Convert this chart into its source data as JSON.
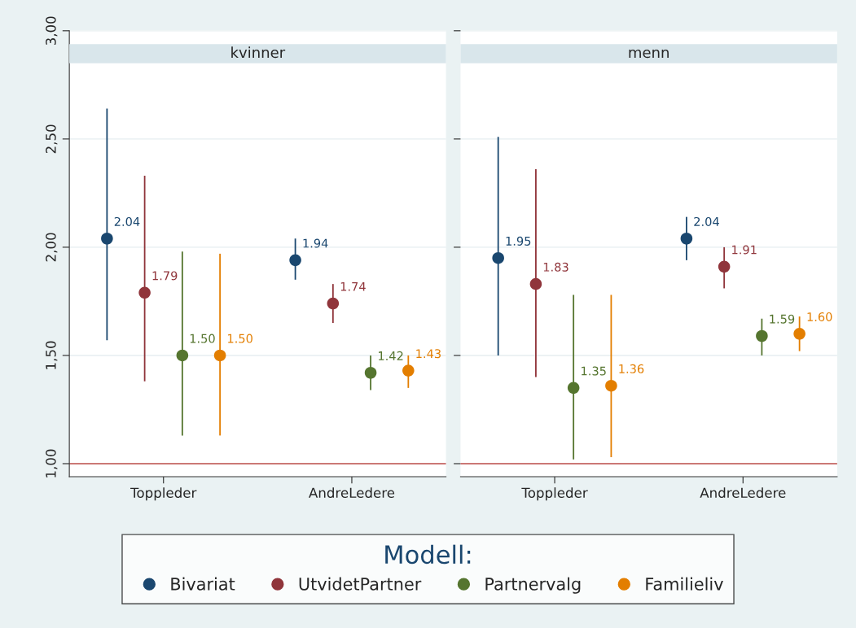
{
  "chart_data": [
    {
      "type": "scatter",
      "title": "kvinner",
      "categories": [
        "Toppleder",
        "AndreLedere"
      ],
      "ylim": [
        0.94,
        3.0
      ],
      "yticks": [
        {
          "value": 1.0,
          "label": "1,00"
        },
        {
          "value": 1.5,
          "label": "1,50"
        },
        {
          "value": 2.0,
          "label": "2,00"
        },
        {
          "value": 2.5,
          "label": "2,50"
        },
        {
          "value": 3.0,
          "label": "3,00"
        }
      ],
      "grid": "y",
      "marker": "circle",
      "legend": "bottom",
      "legend_title": "Modell:",
      "ref_lines": [
        {
          "axis": "y",
          "value": 1.0,
          "color": "#c0504d"
        }
      ],
      "series": [
        {
          "name": "Bivariat",
          "color": "#1a476f",
          "values": [
            2.04,
            1.94
          ],
          "value_labels": [
            "2.04",
            "1.94"
          ],
          "errors": [
            [
              1.57,
              2.64
            ],
            [
              1.85,
              2.04
            ]
          ]
        },
        {
          "name": "UtvidetPartner",
          "color": "#90353b",
          "values": [
            1.79,
            1.74
          ],
          "value_labels": [
            "1.79",
            "1.74"
          ],
          "errors": [
            [
              1.38,
              2.33
            ],
            [
              1.65,
              1.83
            ]
          ]
        },
        {
          "name": "Partnervalg",
          "color": "#55752f",
          "values": [
            1.5,
            1.42
          ],
          "value_labels": [
            "1.50",
            "1.42"
          ],
          "errors": [
            [
              1.13,
              1.98
            ],
            [
              1.34,
              1.5
            ]
          ]
        },
        {
          "name": "Familieliv",
          "color": "#e37e00",
          "values": [
            1.5,
            1.43
          ],
          "value_labels": [
            "1.50",
            "1.43"
          ],
          "errors": [
            [
              1.13,
              1.97
            ],
            [
              1.35,
              1.5
            ]
          ]
        }
      ]
    },
    {
      "type": "scatter",
      "title": "menn",
      "categories": [
        "Toppleder",
        "AndreLedere"
      ],
      "ylim": [
        0.94,
        3.0
      ],
      "yticks": [
        1.0,
        1.5,
        2.0,
        2.5,
        3.0
      ],
      "tick_labels": "x",
      "grid": "y",
      "marker": "circle",
      "ref_lines": [
        {
          "axis": "y",
          "value": 1.0,
          "color": "#c0504d"
        }
      ],
      "series": [
        {
          "color": "#1a476f",
          "values": [
            1.95,
            2.04
          ],
          "value_labels": [
            "1.95",
            "2.04"
          ],
          "errors": [
            [
              1.5,
              2.51
            ],
            [
              1.94,
              2.14
            ]
          ]
        },
        {
          "color": "#90353b",
          "values": [
            1.83,
            1.91
          ],
          "value_labels": [
            "1.83",
            "1.91"
          ],
          "errors": [
            [
              1.4,
              2.36
            ],
            [
              1.81,
              2.0
            ]
          ]
        },
        {
          "color": "#55752f",
          "values": [
            1.35,
            1.59
          ],
          "value_labels": [
            "1.35",
            "1.59"
          ],
          "errors": [
            [
              1.02,
              1.78
            ],
            [
              1.5,
              1.67
            ]
          ]
        },
        {
          "color": "#e37e00",
          "values": [
            1.36,
            1.6
          ],
          "value_labels": [
            "1.36",
            "1.60"
          ],
          "errors": [
            [
              1.03,
              1.78
            ],
            [
              1.52,
              1.68
            ]
          ]
        }
      ]
    }
  ]
}
